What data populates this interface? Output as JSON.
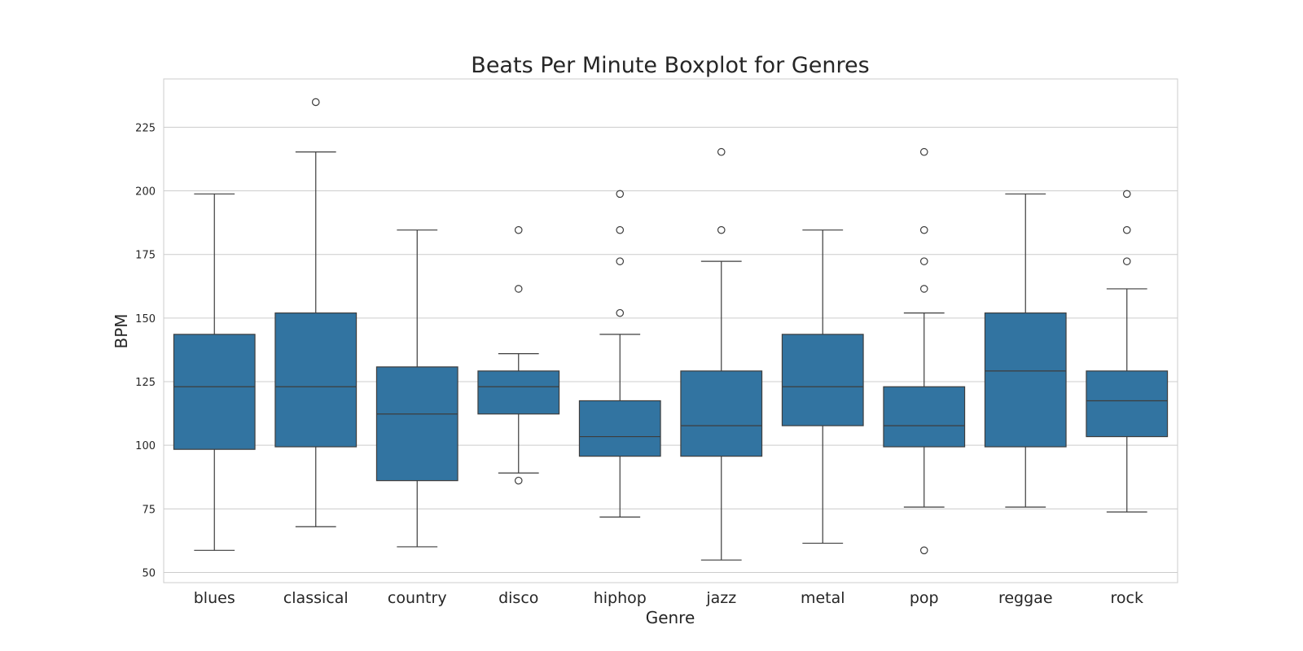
{
  "chart_data": {
    "type": "boxplot",
    "title": "Beats Per Minute Boxplot for Genres",
    "xlabel": "Genre",
    "ylabel": "BPM",
    "ylim": [
      46,
      244
    ],
    "yticks": [
      50,
      75,
      100,
      125,
      150,
      175,
      200,
      225
    ],
    "grid": true,
    "box_color": "#3274a1",
    "line_color": "#3d3d3d",
    "categories": [
      "blues",
      "classical",
      "country",
      "disco",
      "hiphop",
      "jazz",
      "metal",
      "pop",
      "reggae",
      "rock"
    ],
    "boxes": [
      {
        "name": "blues",
        "whislo": 58.7,
        "q1": 98.4,
        "med": 123.0,
        "q3": 143.6,
        "whishi": 198.8,
        "fliers": []
      },
      {
        "name": "classical",
        "whislo": 68.0,
        "q1": 99.4,
        "med": 123.0,
        "q3": 152.0,
        "whishi": 215.3,
        "fliers": [
          234.9
        ]
      },
      {
        "name": "country",
        "whislo": 60.1,
        "q1": 86.1,
        "med": 112.3,
        "q3": 130.8,
        "whishi": 184.6,
        "fliers": []
      },
      {
        "name": "disco",
        "whislo": 89.1,
        "q1": 112.3,
        "med": 123.0,
        "q3": 129.2,
        "whishi": 136.0,
        "fliers": [
          86.1,
          161.5,
          184.6
        ]
      },
      {
        "name": "hiphop",
        "whislo": 71.8,
        "q1": 95.7,
        "med": 103.4,
        "q3": 117.5,
        "whishi": 143.6,
        "fliers": [
          152.0,
          172.3,
          184.6,
          198.8
        ]
      },
      {
        "name": "jazz",
        "whislo": 54.9,
        "q1": 95.7,
        "med": 107.7,
        "q3": 129.2,
        "whishi": 172.3,
        "fliers": [
          184.6,
          215.3
        ]
      },
      {
        "name": "metal",
        "whislo": 61.5,
        "q1": 107.7,
        "med": 123.0,
        "q3": 143.6,
        "whishi": 184.6,
        "fliers": []
      },
      {
        "name": "pop",
        "whislo": 75.7,
        "q1": 99.4,
        "med": 107.7,
        "q3": 123.0,
        "whishi": 152.0,
        "fliers": [
          58.7,
          161.5,
          172.3,
          184.6,
          215.3
        ]
      },
      {
        "name": "reggae",
        "whislo": 75.7,
        "q1": 99.4,
        "med": 129.2,
        "q3": 152.0,
        "whishi": 198.8,
        "fliers": []
      },
      {
        "name": "rock",
        "whislo": 73.8,
        "q1": 103.4,
        "med": 117.5,
        "q3": 129.2,
        "whishi": 161.5,
        "fliers": [
          172.3,
          184.6,
          198.8
        ]
      }
    ]
  }
}
